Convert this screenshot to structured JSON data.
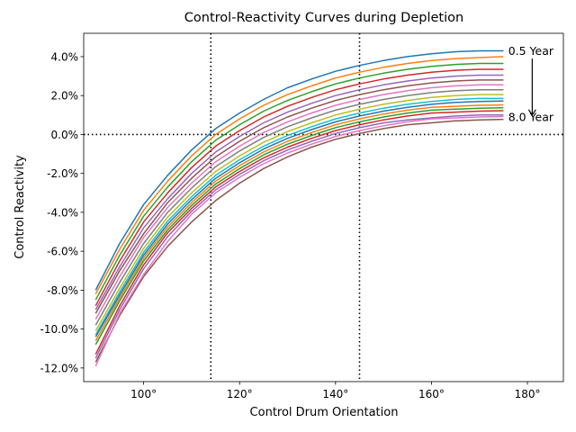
{
  "chart_data": {
    "type": "line",
    "title": "Control-Reactivity Curves during Depletion",
    "xlabel": "Control Drum Orientation",
    "ylabel": "Control Reactivity",
    "xlim": [
      87.5,
      187.5
    ],
    "ylim": [
      -12.7,
      5.2
    ],
    "x_ticks": [
      100,
      120,
      140,
      160,
      180
    ],
    "x_tick_labels": [
      "100°",
      "120°",
      "140°",
      "160°",
      "180°"
    ],
    "y_ticks": [
      -12,
      -10,
      -8,
      -6,
      -4,
      -2,
      0,
      2,
      4
    ],
    "y_tick_labels": [
      "-12.0%",
      "-10.0%",
      "-8.0%",
      "-6.0%",
      "-4.0%",
      "-2.0%",
      "0.0%",
      "2.0%",
      "4.0%"
    ],
    "grid": false,
    "legend": "none",
    "reference_lines": {
      "horizontal_y": [
        0
      ],
      "vertical_x": [
        114,
        145
      ],
      "style": "dotted",
      "color": "#000000"
    },
    "annotations": [
      {
        "text": "0.5 Year",
        "x": 176,
        "y": 4.1
      },
      {
        "text": "8.0 Year",
        "x": 176,
        "y": 0.7
      },
      {
        "arrow_from": [
          181,
          3.9
        ],
        "arrow_to": [
          181,
          1.0
        ]
      }
    ],
    "x": [
      90,
      95,
      100,
      105,
      110,
      115,
      120,
      125,
      130,
      135,
      140,
      145,
      150,
      155,
      160,
      165,
      170,
      175
    ],
    "series": [
      {
        "color": "#1f77b4",
        "values": [
          -8.0,
          -5.6,
          -3.6,
          -2.1,
          -0.8,
          0.3,
          1.1,
          1.8,
          2.4,
          2.85,
          3.25,
          3.55,
          3.8,
          4.0,
          4.15,
          4.25,
          4.3,
          4.3
        ]
      },
      {
        "color": "#ff7f0e",
        "values": [
          -8.2,
          -5.9,
          -3.9,
          -2.4,
          -1.1,
          0.0,
          0.8,
          1.5,
          2.05,
          2.5,
          2.9,
          3.2,
          3.45,
          3.65,
          3.8,
          3.9,
          3.95,
          4.0
        ]
      },
      {
        "color": "#2ca02c",
        "values": [
          -8.5,
          -6.2,
          -4.2,
          -2.7,
          -1.4,
          -0.3,
          0.5,
          1.2,
          1.75,
          2.2,
          2.6,
          2.9,
          3.15,
          3.35,
          3.5,
          3.6,
          3.65,
          3.65
        ]
      },
      {
        "color": "#d62728",
        "values": [
          -8.8,
          -6.5,
          -4.5,
          -3.0,
          -1.7,
          -0.6,
          0.2,
          0.9,
          1.45,
          1.9,
          2.3,
          2.6,
          2.85,
          3.05,
          3.2,
          3.3,
          3.35,
          3.35
        ]
      },
      {
        "color": "#9467bd",
        "values": [
          -9.0,
          -6.8,
          -4.8,
          -3.3,
          -2.0,
          -0.9,
          -0.1,
          0.6,
          1.15,
          1.6,
          2.0,
          2.3,
          2.55,
          2.75,
          2.9,
          3.0,
          3.05,
          3.05
        ]
      },
      {
        "color": "#8c564b",
        "values": [
          -9.2,
          -7.0,
          -5.1,
          -3.5,
          -2.25,
          -1.15,
          -0.35,
          0.35,
          0.9,
          1.35,
          1.75,
          2.05,
          2.3,
          2.5,
          2.65,
          2.75,
          2.8,
          2.8
        ]
      },
      {
        "color": "#e377c2",
        "values": [
          -9.5,
          -7.3,
          -5.3,
          -3.75,
          -2.5,
          -1.4,
          -0.6,
          0.1,
          0.65,
          1.1,
          1.5,
          1.8,
          2.05,
          2.25,
          2.4,
          2.5,
          2.55,
          2.55
        ]
      },
      {
        "color": "#7f7f7f",
        "values": [
          -9.8,
          -7.6,
          -5.6,
          -4.0,
          -2.75,
          -1.65,
          -0.85,
          -0.15,
          0.4,
          0.85,
          1.25,
          1.55,
          1.8,
          2.0,
          2.15,
          2.25,
          2.3,
          2.3
        ]
      },
      {
        "color": "#bcbd22",
        "values": [
          -10.1,
          -7.9,
          -5.85,
          -4.25,
          -3.0,
          -1.9,
          -1.1,
          -0.4,
          0.15,
          0.6,
          1.0,
          1.3,
          1.55,
          1.75,
          1.9,
          2.0,
          2.05,
          2.05
        ]
      },
      {
        "color": "#17becf",
        "values": [
          -10.3,
          -8.1,
          -6.05,
          -4.45,
          -3.2,
          -2.1,
          -1.3,
          -0.6,
          -0.05,
          0.4,
          0.8,
          1.1,
          1.35,
          1.55,
          1.7,
          1.8,
          1.85,
          1.85
        ]
      },
      {
        "color": "#1f77b4",
        "values": [
          -10.4,
          -8.25,
          -6.2,
          -4.6,
          -3.35,
          -2.25,
          -1.45,
          -0.75,
          -0.2,
          0.25,
          0.65,
          0.95,
          1.2,
          1.4,
          1.55,
          1.65,
          1.7,
          1.72
        ]
      },
      {
        "color": "#ff7f0e",
        "values": [
          -10.6,
          -8.4,
          -6.35,
          -4.75,
          -3.5,
          -2.4,
          -1.6,
          -0.9,
          -0.35,
          0.1,
          0.5,
          0.8,
          1.05,
          1.25,
          1.4,
          1.45,
          1.5,
          1.52
        ]
      },
      {
        "color": "#2ca02c",
        "values": [
          -10.8,
          -8.55,
          -6.5,
          -4.9,
          -3.65,
          -2.55,
          -1.75,
          -1.05,
          -0.5,
          -0.05,
          0.35,
          0.65,
          0.9,
          1.1,
          1.25,
          1.3,
          1.35,
          1.37
        ]
      },
      {
        "color": "#d62728",
        "values": [
          -11.3,
          -8.8,
          -6.7,
          -5.05,
          -3.8,
          -2.7,
          -1.9,
          -1.2,
          -0.65,
          -0.2,
          0.2,
          0.5,
          0.75,
          0.95,
          1.1,
          1.15,
          1.2,
          1.22
        ]
      },
      {
        "color": "#9467bd",
        "values": [
          -11.5,
          -9.0,
          -6.9,
          -5.25,
          -3.95,
          -2.85,
          -2.05,
          -1.35,
          -0.8,
          -0.35,
          0.05,
          0.35,
          0.6,
          0.75,
          0.85,
          0.95,
          1.0,
          1.0
        ]
      },
      {
        "color": "#8c564b",
        "values": [
          -11.7,
          -9.3,
          -7.3,
          -5.75,
          -4.5,
          -3.4,
          -2.5,
          -1.75,
          -1.15,
          -0.65,
          -0.25,
          0.05,
          0.3,
          0.5,
          0.6,
          0.7,
          0.75,
          0.78
        ]
      },
      {
        "color": "#e377c2",
        "values": [
          -11.9,
          -9.2,
          -7.2,
          -5.5,
          -4.1,
          -3.0,
          -2.2,
          -1.5,
          -0.95,
          -0.5,
          -0.1,
          0.2,
          0.45,
          0.65,
          0.8,
          0.85,
          0.9,
          0.92
        ]
      }
    ]
  }
}
